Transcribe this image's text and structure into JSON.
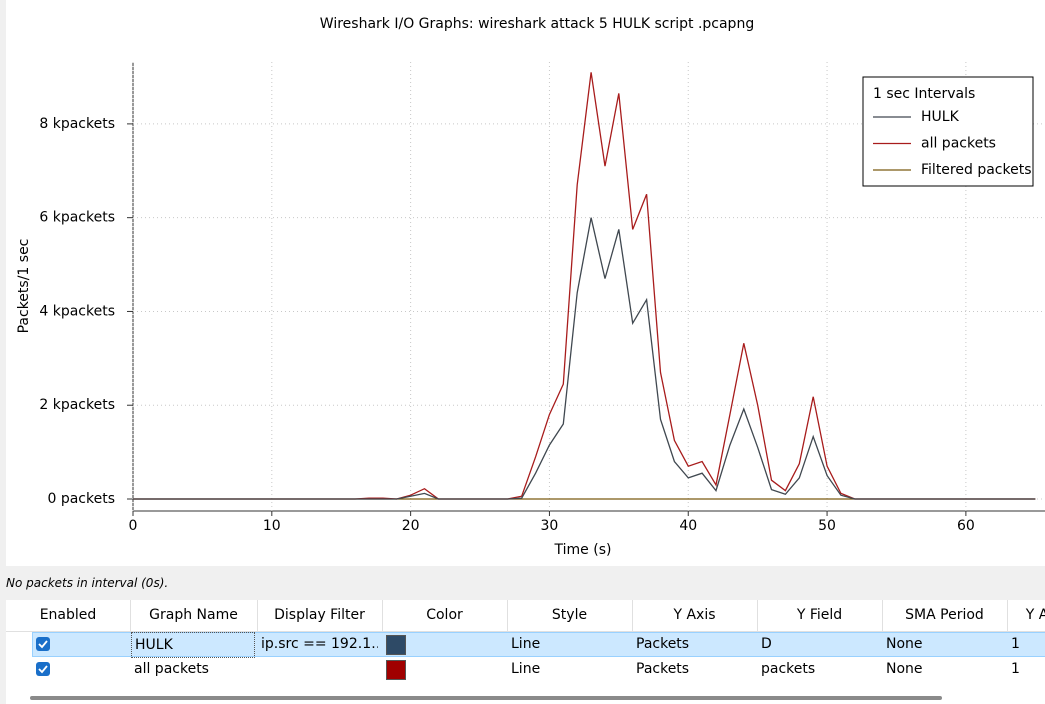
{
  "chart_data": {
    "type": "line",
    "title": "Wireshark I/O Graphs: wireshark attack 5 HULK script .pcapng",
    "x_label": "Time (s)",
    "y_label": "Packets/1 sec",
    "legend_title": "1 sec Intervals",
    "legend": "top-right",
    "grid": true,
    "x": [
      0,
      1,
      2,
      3,
      4,
      5,
      6,
      7,
      8,
      9,
      10,
      11,
      12,
      13,
      14,
      15,
      16,
      17,
      18,
      19,
      20,
      21,
      22,
      23,
      24,
      25,
      26,
      27,
      28,
      29,
      30,
      31,
      32,
      33,
      34,
      35,
      36,
      37,
      38,
      39,
      40,
      41,
      42,
      43,
      44,
      45,
      46,
      47,
      48,
      49,
      50,
      51,
      52,
      53,
      54,
      55,
      56,
      57,
      58,
      59,
      60,
      61,
      62,
      63,
      64,
      65
    ],
    "series": [
      {
        "name": "HULK",
        "color": "#404850",
        "values": [
          0,
          0,
          0,
          0,
          0,
          0,
          0,
          0,
          0,
          0,
          0,
          0,
          0,
          0,
          0,
          0,
          0,
          0,
          0,
          0,
          60,
          120,
          0,
          0,
          0,
          0,
          0,
          0,
          20,
          550,
          1150,
          1600,
          4400,
          6000,
          4700,
          5750,
          3750,
          4250,
          1700,
          800,
          450,
          550,
          180,
          1150,
          1920,
          1100,
          200,
          100,
          450,
          1330,
          500,
          80,
          0,
          0,
          0,
          0,
          0,
          0,
          0,
          0,
          0,
          0,
          0,
          0,
          0,
          0
        ]
      },
      {
        "name": "all packets",
        "color": "#a81c1c",
        "values": [
          0,
          0,
          0,
          0,
          0,
          0,
          0,
          0,
          0,
          0,
          0,
          0,
          0,
          0,
          0,
          0,
          0,
          20,
          20,
          0,
          80,
          220,
          0,
          0,
          0,
          0,
          0,
          0,
          60,
          900,
          1800,
          2450,
          6700,
          9100,
          7100,
          8650,
          5750,
          6500,
          2700,
          1250,
          700,
          800,
          300,
          1800,
          3320,
          2000,
          400,
          180,
          750,
          2180,
          700,
          120,
          0,
          0,
          0,
          0,
          0,
          0,
          0,
          0,
          0,
          0,
          0,
          0,
          0,
          0
        ]
      },
      {
        "name": "Filtered packets",
        "color": "#7a5a10",
        "values": [
          0,
          0,
          0,
          0,
          0,
          0,
          0,
          0,
          0,
          0,
          0,
          0,
          0,
          0,
          0,
          0,
          0,
          0,
          0,
          0,
          0,
          0,
          0,
          0,
          0,
          0,
          0,
          0,
          0,
          0,
          0,
          0,
          0,
          0,
          0,
          0,
          0,
          0,
          0,
          0,
          0,
          0,
          0,
          0,
          0,
          0,
          0,
          0,
          0,
          0,
          0,
          0,
          0,
          0,
          0,
          0,
          0,
          0,
          0,
          0,
          0,
          0,
          0,
          0,
          0,
          0
        ]
      }
    ],
    "xlim": [
      0,
      65.7
    ],
    "xticks": [
      0,
      10,
      20,
      30,
      40,
      50,
      60
    ],
    "ylim": [
      -256,
      9320
    ],
    "yticks": [
      {
        "value": 0,
        "label": "0 packets"
      },
      {
        "value": 2000,
        "label": "2 kpackets"
      },
      {
        "value": 4000,
        "label": "4 kpackets"
      },
      {
        "value": 6000,
        "label": "6 kpackets"
      },
      {
        "value": 8000,
        "label": "8 kpackets"
      }
    ]
  },
  "status": "No packets in interval (0s).",
  "table": {
    "columns": [
      "Enabled",
      "Graph Name",
      "Display Filter",
      "Color",
      "Style",
      "Y Axis",
      "Y Field",
      "SMA Period",
      "Y A"
    ],
    "rows": [
      [
        "",
        "HULK",
        "ip.src == 192.1…",
        {
          "color": "#2e4a66"
        },
        "Line",
        "Packets",
        "D",
        "None",
        "1"
      ],
      [
        "",
        "all packets",
        "",
        {
          "color": "#a00000"
        },
        "Line",
        "Packets",
        "packets",
        "None",
        "1"
      ]
    ]
  }
}
